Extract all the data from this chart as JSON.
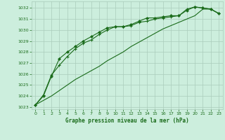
{
  "title": "Graphe pression niveau de la mer (hPa)",
  "bg_color": "#cceedd",
  "grid_color": "#aaccbb",
  "line_color": "#1a6b1a",
  "xlim": [
    -0.5,
    23.5
  ],
  "ylim": [
    1022.8,
    1032.6
  ],
  "yticks": [
    1023,
    1024,
    1025,
    1026,
    1027,
    1028,
    1029,
    1030,
    1031,
    1032
  ],
  "xticks": [
    0,
    1,
    2,
    3,
    4,
    5,
    6,
    7,
    8,
    9,
    10,
    11,
    12,
    13,
    14,
    15,
    16,
    17,
    18,
    19,
    20,
    21,
    22,
    23
  ],
  "line_plus": {
    "x": [
      0,
      1,
      2,
      3,
      4,
      5,
      6,
      7,
      8,
      9,
      10,
      11,
      12,
      13,
      14,
      15,
      16,
      17,
      18,
      19,
      20,
      21,
      22,
      23
    ],
    "y": [
      1023.2,
      1024.1,
      1025.9,
      1026.8,
      1027.6,
      1028.3,
      1028.8,
      1029.1,
      1029.6,
      1030.0,
      1030.3,
      1030.3,
      1030.4,
      1030.7,
      1030.8,
      1031.0,
      1031.1,
      1031.2,
      1031.3,
      1031.9,
      1032.1,
      1032.0,
      1031.9,
      1031.5
    ]
  },
  "line_diamond": {
    "x": [
      0,
      1,
      2,
      3,
      4,
      5,
      6,
      7,
      8,
      9,
      10,
      11,
      12,
      13,
      14,
      15,
      16,
      17,
      18,
      19,
      20,
      21,
      22,
      23
    ],
    "y": [
      1023.2,
      1024.0,
      1025.8,
      1027.4,
      1028.0,
      1028.5,
      1029.0,
      1029.4,
      1029.8,
      1030.2,
      1030.3,
      1030.3,
      1030.5,
      1030.8,
      1031.1,
      1031.1,
      1031.2,
      1031.3,
      1031.3,
      1031.8,
      1032.1,
      1032.0,
      1031.9,
      1031.5
    ]
  },
  "line_smooth": {
    "x": [
      0,
      1,
      2,
      3,
      4,
      5,
      6,
      7,
      8,
      9,
      10,
      11,
      12,
      13,
      14,
      15,
      16,
      17,
      18,
      19,
      20,
      21,
      22,
      23
    ],
    "y": [
      1023.2,
      1023.6,
      1024.0,
      1024.5,
      1025.0,
      1025.5,
      1025.9,
      1026.3,
      1026.7,
      1027.2,
      1027.6,
      1028.0,
      1028.5,
      1028.9,
      1029.3,
      1029.7,
      1030.1,
      1030.4,
      1030.7,
      1031.0,
      1031.3,
      1031.9,
      1031.9,
      1031.5
    ]
  }
}
